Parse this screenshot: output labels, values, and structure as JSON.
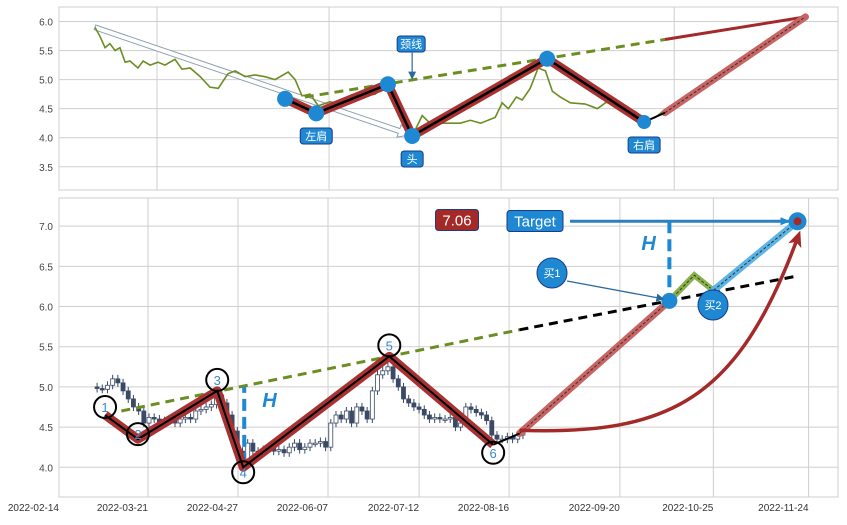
{
  "chart_data": [
    {
      "type": "line",
      "panel": "top",
      "title": "",
      "xlabel": "",
      "ylabel": "",
      "xlim": [
        0,
        225
      ],
      "ylim": [
        3.1,
        6.25
      ],
      "yticks": [
        3.5,
        4.0,
        4.5,
        5.0,
        5.5,
        6.0
      ],
      "ytick_labels": [
        "3.5",
        "4.0",
        "4.5",
        "5.0",
        "5.5",
        "6.0"
      ],
      "xgrid": [
        28.3,
        78,
        127.7,
        177.7
      ],
      "grid": true,
      "price_line": {
        "x": [
          10.4,
          11.8,
          13.3,
          14.7,
          16.2,
          17.6,
          19.1,
          20.5,
          22.8,
          24.3,
          26.3,
          28.6,
          30.6,
          33.5,
          35.5,
          37.9,
          40.8,
          43.6,
          46,
          48.8,
          50.9,
          53.8,
          56.6,
          59.5,
          62.4,
          66.2,
          68.2,
          70.2,
          72.5,
          74.9,
          78.3,
          82.6,
          87,
          91.3,
          95.7,
          98.6,
          100.9,
          102.6,
          104.9,
          107.2,
          111.6,
          115.9,
          118.8,
          121.8,
          126,
          128,
          129.8,
          132.1,
          133.8,
          136.1,
          138.4,
          140.5,
          142.5,
          144.8,
          147.7,
          152,
          155.5,
          157.8,
          160.7,
          163.6,
          166.5,
          169.4,
          172.3,
          174.3
        ],
        "y": [
          5.9,
          5.75,
          5.55,
          5.62,
          5.5,
          5.55,
          5.3,
          5.32,
          5.2,
          5.32,
          5.25,
          5.3,
          5.25,
          5.35,
          5.18,
          5.2,
          5.05,
          4.87,
          4.85,
          5.1,
          5.15,
          5.05,
          5.08,
          5.05,
          5.0,
          5.13,
          5.0,
          4.72,
          4.75,
          4.55,
          4.62,
          4.55,
          4.7,
          4.75,
          4.95,
          4.6,
          4.3,
          4.1,
          4.38,
          4.25,
          4.25,
          4.25,
          4.3,
          4.25,
          4.35,
          4.6,
          4.5,
          4.7,
          4.65,
          4.85,
          5.2,
          5.15,
          4.8,
          4.7,
          4.6,
          4.58,
          4.5,
          4.6,
          4.65,
          4.5,
          4.45,
          4.3,
          4.35,
          4.45
        ]
      },
      "pattern": {
        "x": [
          65.3,
          74.3,
          95,
          102,
          141,
          169
        ],
        "y": [
          4.67,
          4.42,
          4.92,
          4.03,
          5.36,
          4.27
        ]
      },
      "projection": {
        "x": [
          169,
          175,
          215.6
        ],
        "y": [
          4.27,
          4.43,
          6.08
        ]
      },
      "neckline": {
        "x": [
          71,
          175
        ],
        "y": [
          4.7,
          5.69
        ]
      },
      "neckline_extension": {
        "x": [
          175,
          215.6
        ],
        "y": [
          5.69,
          6.08
        ]
      },
      "trend_arrow": {
        "x": [
          10.4,
          101.5
        ],
        "y": [
          5.9,
          4.05
        ]
      },
      "annotations": [
        {
          "text": "颈线",
          "x": 102,
          "y": 5.0,
          "kind": "neckline"
        },
        {
          "text": "左肩",
          "x": 74.3,
          "y": 4.42,
          "kind": "left-shoulder"
        },
        {
          "text": "头",
          "x": 102,
          "y": 4.03,
          "kind": "head"
        },
        {
          "text": "右肩",
          "x": 169,
          "y": 4.27,
          "kind": "right-shoulder"
        }
      ]
    },
    {
      "type": "candlestick",
      "panel": "bottom",
      "title": "",
      "xlabel": "",
      "ylabel": "",
      "xlim": [
        0,
        225
      ],
      "ylim": [
        3.63,
        7.35
      ],
      "yticks": [
        4.0,
        4.5,
        5.0,
        5.5,
        6.0,
        6.5,
        7.0
      ],
      "ytick_labels": [
        "4.0",
        "4.5",
        "5.0",
        "5.5",
        "6.0",
        "6.5",
        "7.0"
      ],
      "xticks": [
        0,
        25.7,
        51.7,
        77.7,
        104,
        130,
        162,
        189,
        216.5
      ],
      "xtick_labels": [
        "2022-02-14",
        "2022-03-21",
        "2022-04-27",
        "2022-06-07",
        "2022-07-12",
        "2022-08-16",
        "2022-09-20",
        "2022-10-25",
        "2022-11-24"
      ],
      "grid": true,
      "candles": {
        "x_start": 11,
        "x_step": 1.5,
        "close": [
          4.98,
          4.97,
          5.02,
          5.1,
          5.05,
          4.95,
          4.85,
          4.75,
          4.7,
          4.55,
          4.62,
          4.6,
          4.55,
          4.58,
          4.6,
          4.55,
          4.6,
          4.62,
          4.6,
          4.7,
          4.72,
          4.75,
          4.78,
          4.9,
          4.8,
          4.65,
          4.45,
          4.2,
          4.1,
          4.3,
          4.2,
          4.18,
          4.22,
          4.25,
          4.2,
          4.22,
          4.18,
          4.25,
          4.3,
          4.22,
          4.25,
          4.3,
          4.3,
          4.32,
          4.25,
          4.55,
          4.65,
          4.6,
          4.7,
          4.55,
          4.75,
          4.7,
          4.6,
          4.95,
          5.15,
          5.2,
          5.25,
          5.1,
          5.0,
          4.85,
          4.8,
          4.75,
          4.72,
          4.65,
          4.6,
          4.62,
          4.6,
          4.6,
          4.62,
          4.5,
          4.55,
          4.75,
          4.72,
          4.68,
          4.65,
          4.58,
          4.4,
          4.35,
          4.35,
          4.38,
          4.35,
          4.4,
          4.42
        ]
      },
      "pattern": {
        "labels": [
          "1",
          "2",
          "3",
          "4",
          "5",
          "6"
        ],
        "x": [
          13.3,
          22.8,
          45.7,
          53.2,
          95.4,
          125.4
        ],
        "y": [
          4.65,
          4.35,
          4.95,
          4.0,
          5.38,
          4.28
        ]
      },
      "recovery": {
        "x": [
          125.4,
          133,
          176.3
        ],
        "y": [
          4.28,
          4.42,
          6.07
        ]
      },
      "pullback": {
        "x": [
          176.3,
          183.5,
          189
        ],
        "y": [
          6.07,
          6.39,
          6.2
        ]
      },
      "target_leg": {
        "x": [
          189,
          213.3
        ],
        "y": [
          6.2,
          7.06
        ]
      },
      "neckline": {
        "x": [
          18,
          133
        ],
        "y": [
          4.7,
          5.71
        ]
      },
      "neckline_extension": {
        "x": [
          133,
          213.3
        ],
        "y": [
          5.71,
          6.38
        ]
      },
      "height_marker": {
        "x": 53.5,
        "y": [
          4.03,
          5.0
        ],
        "label": "H"
      },
      "target_height_marker": {
        "x": 176.3,
        "y": [
          6.1,
          7.06
        ],
        "label": "H"
      },
      "curved_arrow": {
        "from": [
          133,
          4.46
        ],
        "to": [
          213.3,
          6.95
        ]
      },
      "target": {
        "label": "Target",
        "value": "7.06",
        "x": 213.3,
        "y": 7.06
      },
      "buy_points": [
        {
          "label": "买1",
          "x": 176.3,
          "y": 6.07
        },
        {
          "label": "买2",
          "x": 189,
          "y": 6.2
        }
      ]
    }
  ],
  "colors": {
    "price_line": "#6b8e23",
    "pattern_outer": "#a83232",
    "pattern_inner": "#000000",
    "projection": "#c86464",
    "accent_blue": "#1e88d2",
    "neckline": "#6b8e23",
    "value_box": "#a42a2a",
    "grid": "#cfcfcf"
  }
}
